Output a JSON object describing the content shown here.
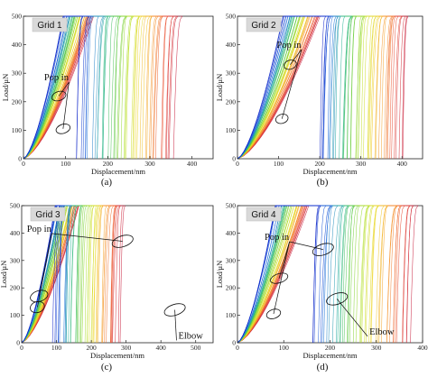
{
  "chart_data": [
    {
      "type": "line",
      "title": "Grid 1",
      "caption": "(a)",
      "xlabel": "Displacement/nm",
      "ylabel": "Load/μN",
      "xlim": [
        0,
        450
      ],
      "ylim": [
        0,
        500
      ],
      "xticks": [
        "0",
        "100",
        "200",
        "300",
        "400"
      ],
      "yticks": [
        "0",
        "100",
        "200",
        "300",
        "400",
        "500"
      ],
      "max_load": 500,
      "curve_count": 45,
      "loading_depth_range": [
        95,
        165
      ],
      "final_depth_range": [
        125,
        355
      ],
      "color_scale": "red-orange-yellow-green-blue",
      "annotations": [
        {
          "text": "Pop in",
          "ellipses": [
            [
              84,
              220
            ],
            [
              94,
              105
            ]
          ],
          "label_at": [
            78,
            275
          ]
        }
      ]
    },
    {
      "type": "line",
      "title": "Grid 2",
      "caption": "(b)",
      "xlabel": "Displacement/nm",
      "ylabel": "Load/μN",
      "xlim": [
        0,
        450
      ],
      "ylim": [
        0,
        500
      ],
      "xticks": [
        "0",
        "100",
        "200",
        "300",
        "400"
      ],
      "yticks": [
        "0",
        "100",
        "200",
        "300",
        "400",
        "500"
      ],
      "max_load": 500,
      "curve_count": 45,
      "loading_depth_range": [
        110,
        200
      ],
      "final_depth_range": [
        195,
        400
      ],
      "color_scale": "red-orange-yellow-green-blue",
      "annotations": [
        {
          "text": "Pop in",
          "ellipses": [
            [
              128,
              330
            ],
            [
              108,
              140
            ]
          ],
          "label_at": [
            125,
            390
          ]
        }
      ]
    },
    {
      "type": "line",
      "title": "Grid 3",
      "caption": "(c)",
      "xlabel": "Displacement/nm",
      "ylabel": "Load/μN",
      "xlim": [
        0,
        550
      ],
      "ylim": [
        0,
        500
      ],
      "xticks": [
        "0",
        "100",
        "200",
        "300",
        "400",
        "500"
      ],
      "yticks": [
        "0",
        "100",
        "200",
        "300",
        "400",
        "500"
      ],
      "max_load": 500,
      "curve_count": 45,
      "loading_depth_range": [
        95,
        165
      ],
      "final_depth_range": [
        90,
        280
      ],
      "color_scale": "red-orange-yellow-green-blue",
      "annotations": [
        {
          "text": "Pop in",
          "ellipses": [
            [
              290,
              370
            ],
            [
              50,
              170
            ],
            [
              45,
              130
            ]
          ],
          "label_at": [
            50,
            405
          ]
        },
        {
          "text": "Elbow",
          "ellipses": [
            [
              440,
              120
            ]
          ],
          "label_at": [
            450,
            15
          ]
        }
      ]
    },
    {
      "type": "line",
      "title": "Grid 4",
      "caption": "(d)",
      "xlabel": "Displacement/nm",
      "ylabel": "Load/μN",
      "xlim": [
        0,
        400
      ],
      "ylim": [
        0,
        500
      ],
      "xticks": [
        "0",
        "100",
        "200",
        "300",
        "400"
      ],
      "yticks": [
        "0",
        "100",
        "200",
        "300",
        "400",
        "500"
      ],
      "max_load": 500,
      "curve_count": 45,
      "loading_depth_range": [
        80,
        155
      ],
      "final_depth_range": [
        160,
        370
      ],
      "color_scale": "red-orange-yellow-green-blue",
      "annotations": [
        {
          "text": "Pop in",
          "ellipses": [
            [
              185,
              340
            ],
            [
              90,
              235
            ],
            [
              78,
              105
            ]
          ],
          "label_at": [
            85,
            375
          ]
        },
        {
          "text": "Elbow",
          "ellipses": [
            [
              215,
              160
            ]
          ],
          "label_at": [
            285,
            30
          ]
        }
      ]
    }
  ]
}
